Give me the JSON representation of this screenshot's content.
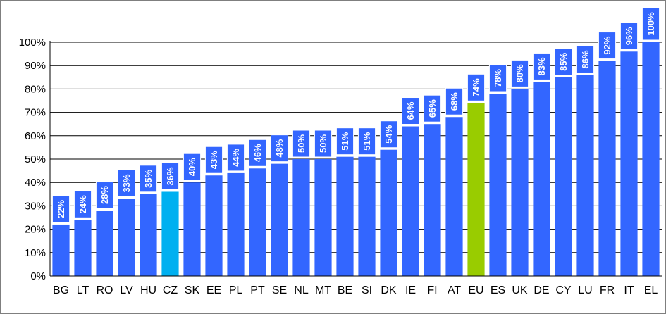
{
  "chart_data": {
    "type": "bar",
    "categories": [
      "BG",
      "LT",
      "RO",
      "LV",
      "HU",
      "CZ",
      "SK",
      "EE",
      "PL",
      "PT",
      "SE",
      "NL",
      "MT",
      "BE",
      "SI",
      "DK",
      "IE",
      "FI",
      "AT",
      "EU",
      "ES",
      "UK",
      "DE",
      "CY",
      "LU",
      "FR",
      "IT",
      "EL"
    ],
    "values": [
      22,
      24,
      28,
      33,
      35,
      36,
      40,
      43,
      44,
      46,
      48,
      50,
      50,
      51,
      51,
      54,
      64,
      65,
      68,
      74,
      78,
      80,
      83,
      85,
      86,
      92,
      96,
      100
    ],
    "data_labels": [
      "22%",
      "24%",
      "28%",
      "33%",
      "35%",
      "36%",
      "40%",
      "43%",
      "44%",
      "46%",
      "48%",
      "50%",
      "50%",
      "51%",
      "51%",
      "54%",
      "64%",
      "65%",
      "68%",
      "74%",
      "78%",
      "80%",
      "83%",
      "85%",
      "86%",
      "92%",
      "96%",
      "100%"
    ],
    "yticks": [
      "0%",
      "10%",
      "20%",
      "30%",
      "40%",
      "50%",
      "60%",
      "70%",
      "80%",
      "90%",
      "100%"
    ],
    "ylim": [
      0,
      100
    ],
    "grid": true,
    "legend": false,
    "colors": {
      "default": "#3366ff",
      "highlight_CZ": "#00b0f0",
      "highlight_EU": "#99cc00",
      "label_box": "#3366ff",
      "grid": "#000000"
    }
  }
}
